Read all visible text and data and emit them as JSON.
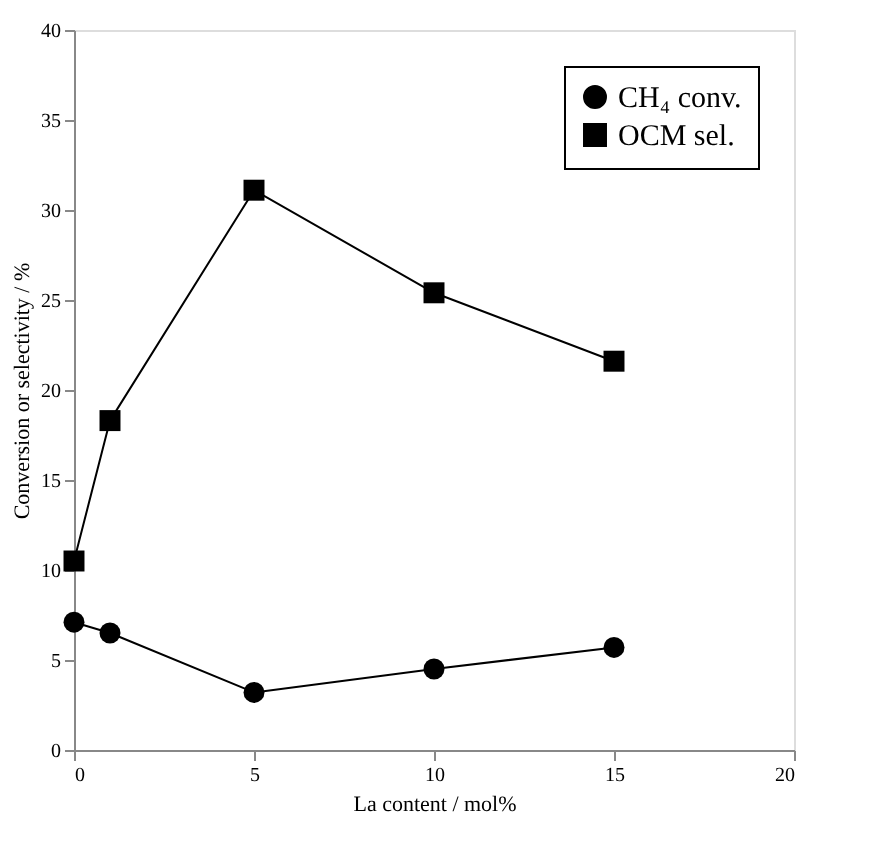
{
  "chart_data": {
    "type": "line",
    "xlabel": "La content / mol%",
    "ylabel": "Conversion or selectivity / %",
    "x": [
      0,
      1,
      5,
      10,
      15
    ],
    "series": [
      {
        "name": "CH₄ conv.",
        "color": "#000000",
        "marker": "circle",
        "values": [
          7.1,
          6.5,
          3.2,
          4.5,
          5.7
        ]
      },
      {
        "name": "OCM sel.",
        "color": "#000000",
        "marker": "square",
        "values": [
          10.5,
          18.3,
          31.1,
          25.4,
          21.6
        ]
      }
    ],
    "xlim": [
      0,
      20
    ],
    "xticks": [
      0,
      5,
      10,
      15,
      20
    ],
    "ylim": [
      0,
      40
    ],
    "yticks": [
      0,
      5,
      10,
      15,
      20,
      25,
      30,
      35,
      40
    ],
    "grid": false,
    "legend": "top right",
    "line_style": "solid"
  }
}
